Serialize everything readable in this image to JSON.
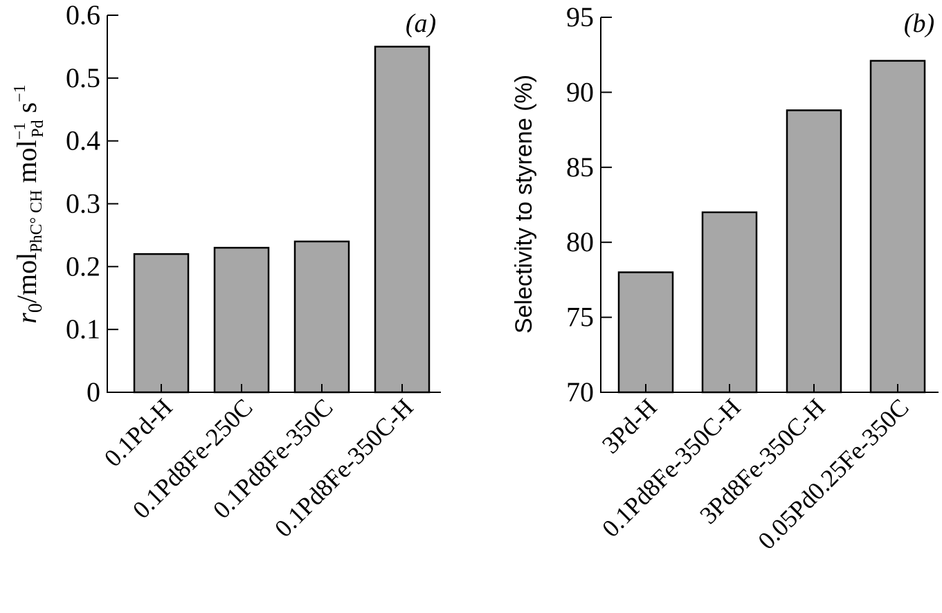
{
  "chart_data": [
    {
      "type": "bar",
      "panel_label": "(a)",
      "categories": [
        "0.1Pd-H",
        "0.1Pd8Fe-250C",
        "0.1Pd8Fe-350C",
        "0.1Pd8Fe-350C-H"
      ],
      "values": [
        0.22,
        0.23,
        0.24,
        0.55
      ],
      "yticks": [
        "0",
        "0.1",
        "0.2",
        "0.3",
        "0.4",
        "0.5",
        "0.6"
      ],
      "ylim": [
        0,
        0.6
      ],
      "ylabel": {
        "r": "r",
        "r_sub": "0",
        "mol1": "/mol",
        "mol1_sub": "PhC° CH",
        "mol2": " mol",
        "mol2_sup": "−1",
        "mol2_sub": "Pd",
        "s": " s",
        "s_sup": "−1"
      },
      "xlabel": "",
      "grid": false,
      "bar_color": "#a7a7a7"
    },
    {
      "type": "bar",
      "panel_label": "(b)",
      "categories": [
        "3Pd-H",
        "0.1Pd8Fe-350C-H",
        "3Pd8Fe-350C-H",
        "0.05Pd0.25Fe-350C"
      ],
      "values": [
        78.0,
        82.0,
        88.8,
        92.1
      ],
      "yticks": [
        "70",
        "75",
        "80",
        "85",
        "90",
        "95"
      ],
      "ylim": [
        70,
        95
      ],
      "ylabel": "Selectivity to styrene (%)",
      "xlabel": "",
      "grid": false,
      "bar_color": "#a7a7a7"
    }
  ]
}
